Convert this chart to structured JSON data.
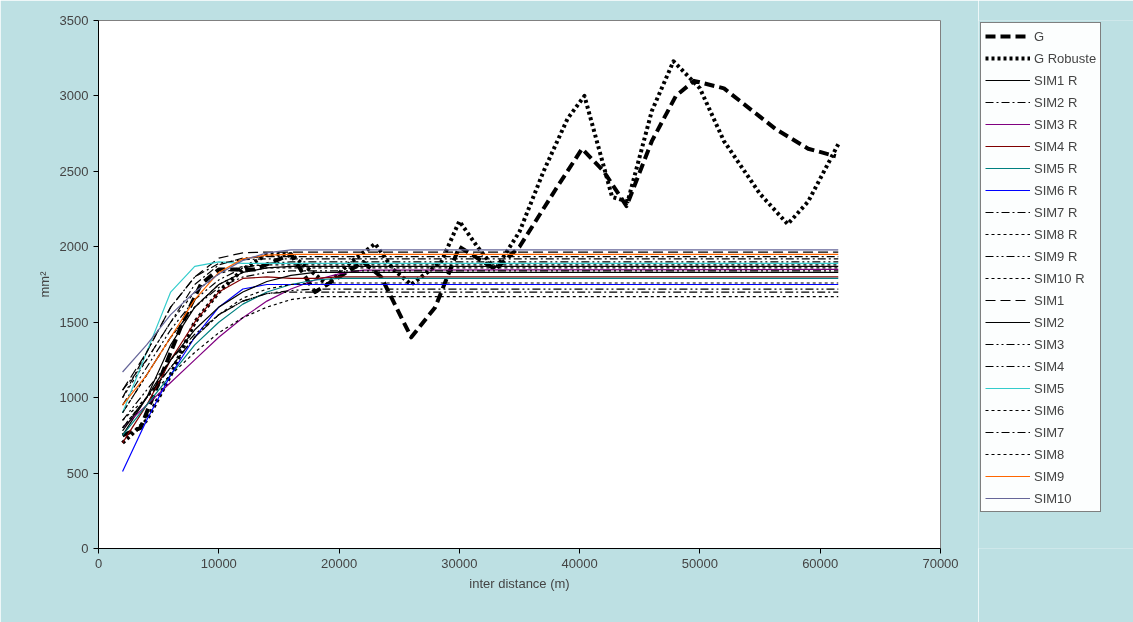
{
  "chart_data": {
    "type": "line",
    "xlabel": "inter distance (m)",
    "ylabel": "mm²",
    "xlim": [
      0,
      70000
    ],
    "ylim": [
      0,
      3500
    ],
    "xticks": [
      0,
      10000,
      20000,
      30000,
      40000,
      50000,
      60000,
      70000
    ],
    "yticks": [
      0,
      500,
      1000,
      1500,
      2000,
      2500,
      3000,
      3500
    ],
    "grid": false,
    "legend": "right",
    "marker": "none",
    "x": [
      2000,
      4000,
      6000,
      8000,
      10000,
      12000,
      14000,
      16000,
      18000,
      20000,
      22000,
      61500
    ],
    "series": [
      {
        "name": "G",
        "color": "#000000",
        "line_style": "dashed",
        "x": [
          2000,
          3500,
          5000,
          7000,
          8500,
          10000,
          13000,
          16000,
          18000,
          20000,
          22000,
          23500,
          26000,
          28000,
          30000,
          33000,
          35000,
          38000,
          40200,
          42000,
          43900,
          46000,
          48000,
          49500,
          52000,
          56300,
          59000,
          61300
        ],
        "values": [
          750,
          800,
          1100,
          1500,
          1750,
          1850,
          1850,
          1950,
          1700,
          1800,
          1900,
          1800,
          1400,
          1600,
          2000,
          1850,
          2000,
          2380,
          2650,
          2500,
          2270,
          2700,
          3000,
          3100,
          3050,
          2780,
          2650,
          2600
        ]
      },
      {
        "name": "G Robuste",
        "color": "#000000",
        "line_style": "dotted",
        "x": [
          2000,
          4000,
          6000,
          8000,
          10000,
          12000,
          14000,
          16000,
          19000,
          21000,
          23000,
          24500,
          26000,
          28500,
          30000,
          31500,
          33000,
          35000,
          37000,
          39000,
          40400,
          42700,
          44000,
          46000,
          47800,
          50000,
          52000,
          55000,
          57300,
          59000,
          61500
        ],
        "values": [
          700,
          850,
          1150,
          1500,
          1700,
          1850,
          1950,
          1950,
          1750,
          1900,
          2020,
          1850,
          1750,
          1900,
          2170,
          2000,
          1850,
          2100,
          2500,
          2850,
          3000,
          2330,
          2300,
          2900,
          3230,
          3050,
          2700,
          2350,
          2150,
          2300,
          2680
        ]
      },
      {
        "name": "SIM1 R",
        "color": "#000000",
        "line_style": "solid",
        "values": [
          750,
          1000,
          1350,
          1600,
          1750,
          1830,
          1860,
          1870,
          1870,
          1870,
          1870,
          1870
        ]
      },
      {
        "name": "SIM2 R",
        "color": "#000000",
        "line_style": "dashdot",
        "values": [
          1050,
          1250,
          1500,
          1750,
          1880,
          1925,
          1935,
          1935,
          1935,
          1935,
          1935,
          1935
        ]
      },
      {
        "name": "SIM3 R",
        "color": "#800080",
        "line_style": "solid",
        "values": [
          800,
          950,
          1100,
          1250,
          1400,
          1530,
          1640,
          1720,
          1780,
          1820,
          1845,
          1850
        ]
      },
      {
        "name": "SIM4 R",
        "color": "#800000",
        "line_style": "solid",
        "values": [
          700,
          950,
          1250,
          1500,
          1700,
          1790,
          1800,
          1790,
          1790,
          1800,
          1800,
          1800
        ]
      },
      {
        "name": "SIM5 R",
        "color": "#008080",
        "line_style": "solid",
        "values": [
          750,
          950,
          1150,
          1350,
          1500,
          1620,
          1700,
          1750,
          1780,
          1790,
          1790,
          1790
        ]
      },
      {
        "name": "SIM6 R",
        "color": "#0000ff",
        "line_style": "solid",
        "values": [
          510,
          850,
          1150,
          1400,
          1600,
          1720,
          1750,
          1750,
          1750,
          1750,
          1750,
          1750
        ]
      },
      {
        "name": "SIM7 R",
        "color": "#000000",
        "line_style": "dashdot",
        "values": [
          800,
          1000,
          1200,
          1400,
          1550,
          1640,
          1690,
          1700,
          1700,
          1700,
          1700,
          1700
        ]
      },
      {
        "name": "SIM8 R",
        "color": "#000000",
        "line_style": "dotted",
        "values": [
          850,
          1000,
          1150,
          1300,
          1430,
          1530,
          1600,
          1650,
          1670,
          1670,
          1670,
          1670
        ]
      },
      {
        "name": "SIM9 R",
        "color": "#000000",
        "line_style": "dashdotdot",
        "values": [
          900,
          1150,
          1400,
          1600,
          1730,
          1800,
          1830,
          1840,
          1840,
          1840,
          1840,
          1840
        ]
      },
      {
        "name": "SIM10 R",
        "color": "#000000",
        "line_style": "dotted",
        "values": [
          1000,
          1250,
          1500,
          1700,
          1820,
          1870,
          1880,
          1880,
          1880,
          1880,
          1880,
          1880
        ]
      },
      {
        "name": "SIM1",
        "color": "#000000",
        "line_style": "dashed",
        "values": [
          1050,
          1300,
          1600,
          1800,
          1925,
          1960,
          1965,
          1965,
          1965,
          1965,
          1965,
          1965
        ]
      },
      {
        "name": "SIM2",
        "color": "#000000",
        "line_style": "solid",
        "values": [
          780,
          1000,
          1250,
          1450,
          1600,
          1700,
          1770,
          1810,
          1830,
          1830,
          1830,
          1830
        ]
      },
      {
        "name": "SIM3",
        "color": "#000000",
        "line_style": "dashdotdot",
        "values": [
          950,
          1200,
          1450,
          1650,
          1780,
          1860,
          1890,
          1900,
          1900,
          1900,
          1900,
          1900
        ]
      },
      {
        "name": "SIM4",
        "color": "#000000",
        "line_style": "dashdotdot",
        "values": [
          850,
          1050,
          1250,
          1420,
          1550,
          1640,
          1690,
          1710,
          1720,
          1720,
          1720,
          1720
        ]
      },
      {
        "name": "SIM5",
        "color": "#33cccc",
        "line_style": "solid",
        "values": [
          900,
          1300,
          1700,
          1870,
          1900,
          1890,
          1890,
          1890,
          1890,
          1890,
          1890,
          1890
        ]
      },
      {
        "name": "SIM6",
        "color": "#000000",
        "line_style": "dotted",
        "values": [
          900,
          1150,
          1400,
          1600,
          1750,
          1830,
          1860,
          1860,
          1860,
          1860,
          1860,
          1860
        ]
      },
      {
        "name": "SIM7",
        "color": "#000000",
        "line_style": "dashdot",
        "values": [
          1000,
          1300,
          1600,
          1800,
          1890,
          1915,
          1920,
          1920,
          1920,
          1920,
          1920,
          1920
        ]
      },
      {
        "name": "SIM8",
        "color": "#000000",
        "line_style": "dotted",
        "values": [
          800,
          1000,
          1200,
          1400,
          1550,
          1660,
          1720,
          1750,
          1760,
          1760,
          1760,
          1760
        ]
      },
      {
        "name": "SIM9",
        "color": "#ff6600",
        "line_style": "solid",
        "values": [
          950,
          1150,
          1400,
          1650,
          1830,
          1920,
          1945,
          1950,
          1950,
          1950,
          1950,
          1950
        ]
      },
      {
        "name": "SIM10",
        "color": "#666699",
        "line_style": "solid",
        "values": [
          1170,
          1350,
          1550,
          1700,
          1820,
          1910,
          1960,
          1980,
          1980,
          1980,
          1980,
          1980
        ]
      }
    ]
  }
}
